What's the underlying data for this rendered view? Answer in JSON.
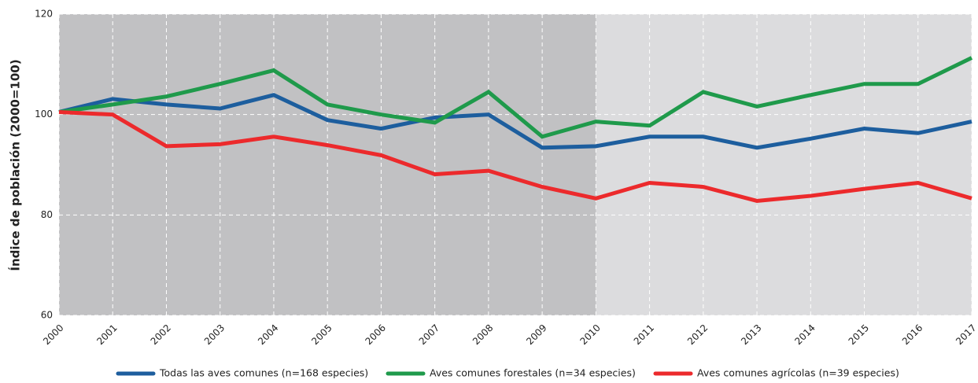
{
  "chart_data": {
    "type": "line",
    "y_axis_label": "Índice de población (2000=100)",
    "x": [
      2000,
      2001,
      2002,
      2003,
      2004,
      2005,
      2006,
      2007,
      2008,
      2009,
      2010,
      2011,
      2012,
      2013,
      2014,
      2015,
      2016,
      2017
    ],
    "xlim": [
      2000,
      2017
    ],
    "xticks": [
      2000,
      2001,
      2002,
      2003,
      2004,
      2005,
      2006,
      2007,
      2008,
      2009,
      2010,
      2011,
      2012,
      2013,
      2014,
      2015,
      2016,
      2017
    ],
    "ylim": [
      60,
      120
    ],
    "yticks": [
      60,
      80,
      100,
      120
    ],
    "grid": true,
    "highlight_xlim": [
      2000,
      2010
    ],
    "legend": "bottom",
    "series": [
      {
        "name": "Todas las aves comunes (n=168 especies)",
        "color": "#1d5e9e",
        "values": [
          100.5,
          103.1,
          102,
          101.2,
          103.9,
          98.9,
          97.2,
          99.4,
          100,
          93.4,
          93.7,
          95.6,
          95.6,
          93.4,
          95.2,
          97.2,
          96.3,
          98.6
        ]
      },
      {
        "name": "Aves comunes forestales (n=34 especies)",
        "color": "#1f9a4b",
        "values": [
          100.5,
          102,
          103.6,
          106.1,
          108.8,
          102,
          100,
          98.4,
          104.5,
          95.6,
          98.6,
          97.8,
          104.5,
          101.6,
          103.9,
          106.1,
          106.1,
          111.3
        ]
      },
      {
        "name": "Aves comunes agrícolas (n=39 especies)",
        "color": "#ec2a2c",
        "values": [
          100.5,
          100,
          93.7,
          94.1,
          95.6,
          93.9,
          91.9,
          88.1,
          88.8,
          85.6,
          83.3,
          86.4,
          85.6,
          82.8,
          83.8,
          85.2,
          86.4,
          83.3
        ]
      }
    ]
  }
}
